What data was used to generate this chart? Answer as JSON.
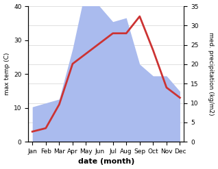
{
  "months": [
    "Jan",
    "Feb",
    "Mar",
    "Apr",
    "May",
    "Jun",
    "Jul",
    "Aug",
    "Sep",
    "Oct",
    "Nov",
    "Dec"
  ],
  "temperature": [
    3,
    4,
    11,
    23,
    26,
    29,
    32,
    32,
    37,
    27,
    16,
    13
  ],
  "precipitation": [
    9,
    10,
    11,
    24,
    40,
    35,
    31,
    32,
    20,
    17,
    17,
    13
  ],
  "temp_color": "#cc3333",
  "precip_color": "#aabbee",
  "ylabel_left": "max temp (C)",
  "ylabel_right": "med. precipitation (kg/m2)",
  "xlabel": "date (month)",
  "ylim_left": [
    0,
    40
  ],
  "ylim_right": [
    0,
    35
  ],
  "yticks_left": [
    0,
    10,
    20,
    30,
    40
  ],
  "yticks_right": [
    0,
    5,
    10,
    15,
    20,
    25,
    30,
    35
  ],
  "background_color": "#ffffff",
  "temp_linewidth": 2.0
}
